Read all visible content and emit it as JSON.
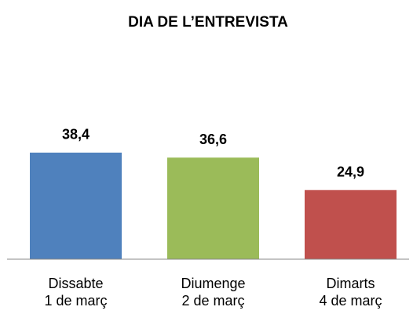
{
  "chart_data": {
    "type": "bar",
    "title": "DIA DE L’ENTREVISTA",
    "categories": [
      [
        "Dissabte",
        "1 de març"
      ],
      [
        "Diumenge",
        "2 de març"
      ],
      [
        "Dimarts",
        "4 de març"
      ]
    ],
    "values": [
      38.4,
      36.6,
      24.9
    ],
    "value_labels": [
      "38,4",
      "36,6",
      "24,9"
    ],
    "colors": [
      "#4f81bd",
      "#9bbb59",
      "#c0504d"
    ],
    "ylim": [
      0,
      45
    ]
  }
}
